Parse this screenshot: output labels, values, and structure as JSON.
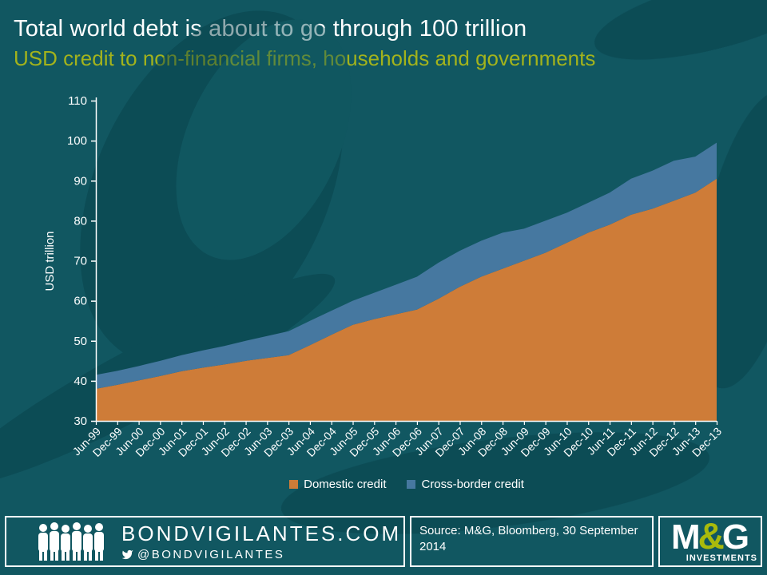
{
  "slide": {
    "title": "Total world debt is about to go through 100 trillion",
    "subtitle": "USD credit to non-financial firms, households and governments"
  },
  "chart_data": {
    "type": "area",
    "stacked": true,
    "x": [
      "Jun-99",
      "Dec-99",
      "Jun-00",
      "Dec-00",
      "Jun-01",
      "Dec-01",
      "Jun-02",
      "Dec-02",
      "Jun-03",
      "Dec-03",
      "Jun-04",
      "Dec-04",
      "Jun-05",
      "Dec-05",
      "Jun-06",
      "Dec-06",
      "Jun-07",
      "Dec-07",
      "Jun-08",
      "Dec-08",
      "Jun-09",
      "Dec-09",
      "Jun-10",
      "Dec-10",
      "Jun-11",
      "Dec-11",
      "Jun-12",
      "Dec-12",
      "Jun-13",
      "Dec-13"
    ],
    "series": [
      {
        "name": "Domestic credit",
        "color": "#CE7C38",
        "values": [
          38.0,
          39.0,
          40.1,
          41.2,
          42.4,
          43.3,
          44.1,
          45.0,
          45.7,
          46.4,
          48.9,
          51.5,
          54.0,
          55.4,
          56.6,
          57.8,
          60.5,
          63.5,
          66.0,
          68.0,
          70.0,
          72.0,
          74.5,
          77.0,
          79.0,
          81.5,
          83.0,
          85.0,
          87.0,
          90.5
        ]
      },
      {
        "name": "Cross-border credit",
        "color": "#4678A0",
        "values": [
          3.5,
          3.5,
          3.6,
          3.8,
          4.0,
          4.3,
          4.6,
          5.0,
          5.5,
          6.0,
          6.1,
          6.0,
          6.0,
          6.6,
          7.4,
          8.2,
          9.0,
          9.0,
          9.0,
          9.0,
          8.0,
          8.0,
          7.5,
          7.5,
          8.0,
          9.0,
          9.5,
          10.0,
          9.0,
          9.0
        ]
      }
    ],
    "title": "Total world debt is about to go through 100 trillion",
    "xlabel": "",
    "ylabel": "USD trillion",
    "ylim": [
      30,
      110
    ],
    "yticks": [
      30,
      40,
      50,
      60,
      70,
      80,
      90,
      100,
      110
    ],
    "grid": false,
    "legend_position": "bottom"
  },
  "footer": {
    "brand": "BONDVIGILANTES.COM",
    "twitter": "@BONDVIGILANTES",
    "source": "Source: M&G,  Bloomberg, 30 September 2014",
    "logo": {
      "m": "M",
      "amp": "&",
      "g": "G",
      "sub": "INVESTMENTS"
    }
  },
  "colors": {
    "background": "#115761",
    "watermark": "#083F49",
    "title": "#FFFFFF",
    "subtitle": "#A3B31C",
    "axis": "#FFFFFF",
    "domestic": "#CE7C38",
    "cross_border": "#4678A0",
    "logo_amp": "#A9BA0B"
  }
}
